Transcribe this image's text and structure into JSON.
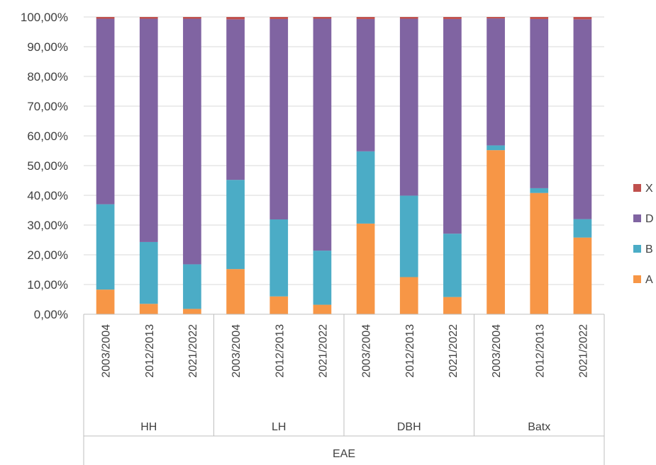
{
  "chart_data": {
    "type": "bar",
    "stacked": true,
    "percent_stacked": true,
    "ylim": [
      0,
      100
    ],
    "yticks": [
      "0,00%",
      "10,00%",
      "20,00%",
      "30,00%",
      "40,00%",
      "50,00%",
      "60,00%",
      "70,00%",
      "80,00%",
      "90,00%",
      "100,00%"
    ],
    "categories": [
      "2003/2004",
      "2012/2013",
      "2021/2022",
      "2003/2004",
      "2012/2013",
      "2021/2022",
      "2003/2004",
      "2012/2013",
      "2021/2022",
      "2003/2004",
      "2012/2013",
      "2021/2022"
    ],
    "groups": [
      {
        "label": "HH",
        "count": 3
      },
      {
        "label": "LH",
        "count": 3
      },
      {
        "label": "DBH",
        "count": 3
      },
      {
        "label": "Batx",
        "count": 3
      }
    ],
    "outer_group": "EAE",
    "series": [
      {
        "name": "A",
        "color": "#F79646",
        "values": [
          8.3,
          3.5,
          1.8,
          15.2,
          6.0,
          3.2,
          30.5,
          12.5,
          5.8,
          55.2,
          40.8,
          25.8
        ]
      },
      {
        "name": "B",
        "color": "#4BACC6",
        "values": [
          28.7,
          20.8,
          15.0,
          30.0,
          25.9,
          18.2,
          24.3,
          27.4,
          21.3,
          1.6,
          1.6,
          6.2
        ]
      },
      {
        "name": "D",
        "color": "#8064A2",
        "values": [
          62.4,
          75.1,
          82.6,
          54.0,
          67.4,
          78.0,
          44.5,
          59.5,
          72.2,
          42.7,
          56.9,
          67.2
        ]
      },
      {
        "name": "X",
        "color": "#C0504D",
        "values": [
          0.6,
          0.6,
          0.6,
          0.8,
          0.7,
          0.6,
          0.7,
          0.6,
          0.7,
          0.5,
          0.7,
          0.8
        ]
      }
    ],
    "legend": {
      "position": "right",
      "order": [
        "X",
        "D",
        "B",
        "A"
      ]
    },
    "grid": true
  }
}
